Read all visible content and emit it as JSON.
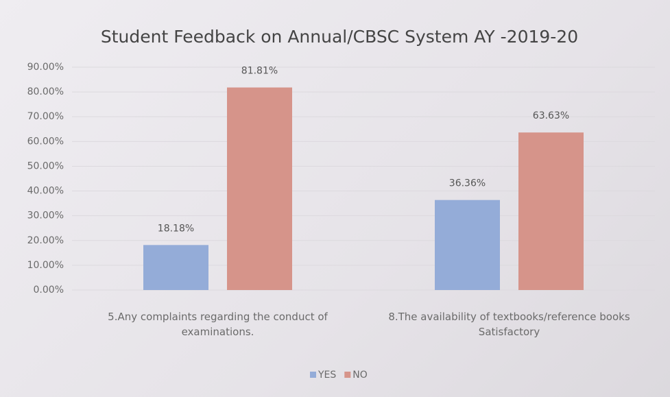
{
  "chart_data": {
    "type": "bar",
    "title": "Student Feedback on Annual/CBSC System AY -2019-20",
    "categories": [
      "5.Any complaints regarding the conduct of examinations.",
      "8.The availability of textbooks/reference books Satisfactory"
    ],
    "series": [
      {
        "name": "YES",
        "color": "#94acd8",
        "values": [
          18.18,
          36.36
        ],
        "value_labels": [
          "18.18%",
          "36.36%"
        ]
      },
      {
        "name": "NO",
        "color": "#d6948a",
        "values": [
          81.81,
          63.63
        ],
        "value_labels": [
          "81.81%",
          "63.63%"
        ]
      }
    ],
    "ylim": [
      0,
      90
    ],
    "yticks": [
      {
        "value": 0,
        "label": "0.00%"
      },
      {
        "value": 10,
        "label": "10.00%"
      },
      {
        "value": 20,
        "label": "20.00%"
      },
      {
        "value": 30,
        "label": "30.00%"
      },
      {
        "value": 40,
        "label": "40.00%"
      },
      {
        "value": 50,
        "label": "50.00%"
      },
      {
        "value": 60,
        "label": "60.00%"
      },
      {
        "value": 70,
        "label": "70.00%"
      },
      {
        "value": 80,
        "label": "80.00%"
      },
      {
        "value": 90,
        "label": "90.00%"
      }
    ],
    "grid": true,
    "legend": "bottom"
  }
}
